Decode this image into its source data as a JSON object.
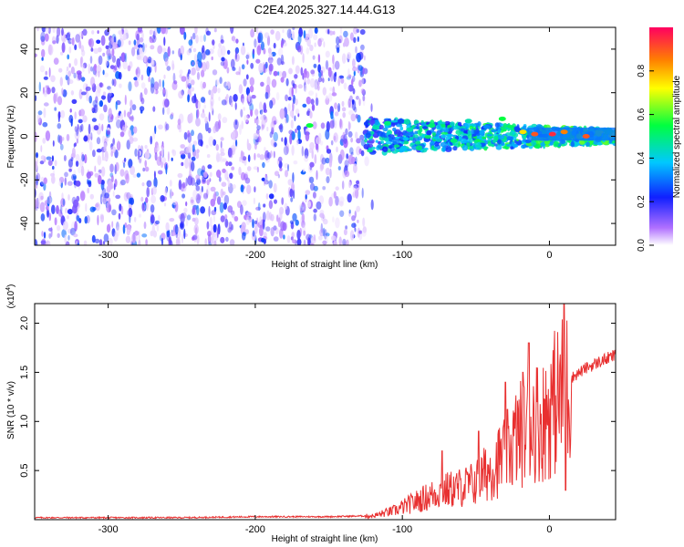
{
  "figure_title": "C2E4.2025.327.14.44.G13",
  "chart_data": [
    {
      "type": "heatmap",
      "name": "spectrogram",
      "title": "C2E4.2025.327.14.44.G13",
      "xlabel": "Height of straight line (km)",
      "ylabel": "Frequency (Hz)",
      "xlim": [
        -350,
        45
      ],
      "ylim": [
        -50,
        50
      ],
      "xticks": [
        -300,
        -200,
        -100,
        0
      ],
      "yticks": [
        -40,
        -20,
        0,
        20,
        40
      ],
      "xtick_labels": [
        "-300",
        "-200",
        "-100",
        "0"
      ],
      "ytick_labels": [
        "-40",
        "-20",
        "0",
        "20",
        "40"
      ],
      "noise_region_x": [
        -350,
        -125
      ],
      "signal_band": {
        "x_start": -125,
        "center_freq": 0,
        "half_width": 8
      },
      "strong_points": [
        {
          "x": -163,
          "y": 5,
          "amp": 0.55
        },
        {
          "x": -118,
          "y": 4,
          "amp": 0.45
        },
        {
          "x": -110,
          "y": 6,
          "amp": 0.5
        },
        {
          "x": -95,
          "y": 3,
          "amp": 0.45
        },
        {
          "x": -80,
          "y": 5,
          "amp": 0.5
        },
        {
          "x": -65,
          "y": -2,
          "amp": 0.5
        },
        {
          "x": -55,
          "y": 7,
          "amp": 0.45
        },
        {
          "x": -32,
          "y": 8,
          "amp": 0.55
        },
        {
          "x": -18,
          "y": 2,
          "amp": 0.75
        },
        {
          "x": -10,
          "y": 1,
          "amp": 0.9
        },
        {
          "x": 2,
          "y": 1,
          "amp": 0.95
        },
        {
          "x": 10,
          "y": 2,
          "amp": 0.85
        },
        {
          "x": 25,
          "y": 0,
          "amp": 0.9
        }
      ],
      "colorbar": {
        "label": "Normalized spectral amplitude",
        "ticks": [
          0.0,
          0.2,
          0.4,
          0.6,
          0.8
        ],
        "tick_labels": [
          "0.0",
          "0.2",
          "0.4",
          "0.6",
          "0.8"
        ],
        "range": [
          0,
          1
        ]
      }
    },
    {
      "type": "line",
      "name": "snr",
      "xlabel": "Height of straight line (km)",
      "ylabel": "SNR (10 * v/v)",
      "y_scale_label": "(x10",
      "y_scale_exponent": "4",
      "xlim": [
        -350,
        45
      ],
      "ylim": [
        0,
        2.2
      ],
      "xticks": [
        -300,
        -200,
        -100,
        0
      ],
      "yticks": [
        0.5,
        1.0,
        1.5,
        2.0
      ],
      "xtick_labels": [
        "-300",
        "-200",
        "-100",
        "0"
      ],
      "ytick_labels": [
        "0.5",
        "1.0",
        "1.5",
        "2.0"
      ],
      "color": "#e83030",
      "series": [
        {
          "name": "SNR",
          "x": [
            -350,
            -300,
            -250,
            -200,
            -150,
            -120,
            -105,
            -90,
            -75,
            -60,
            -50,
            -40,
            -30,
            -22,
            -15,
            -10,
            -5,
            0,
            5,
            10,
            15,
            25,
            35,
            45
          ],
          "y": [
            0.02,
            0.02,
            0.02,
            0.03,
            0.03,
            0.04,
            0.1,
            0.2,
            0.3,
            0.35,
            0.4,
            0.55,
            0.7,
            0.9,
            1.0,
            1.1,
            1.05,
            1.2,
            1.3,
            1.4,
            1.45,
            1.55,
            1.62,
            1.68
          ]
        }
      ],
      "spikes": [
        {
          "x": -73,
          "y": 0.7
        },
        {
          "x": -48,
          "y": 0.9
        },
        {
          "x": -30,
          "y": 1.4
        },
        {
          "x": -18,
          "y": 1.5
        },
        {
          "x": -14,
          "y": 1.8
        },
        {
          "x": 10,
          "y": 2.2
        },
        {
          "x": 11,
          "y": 0.3
        }
      ]
    }
  ]
}
